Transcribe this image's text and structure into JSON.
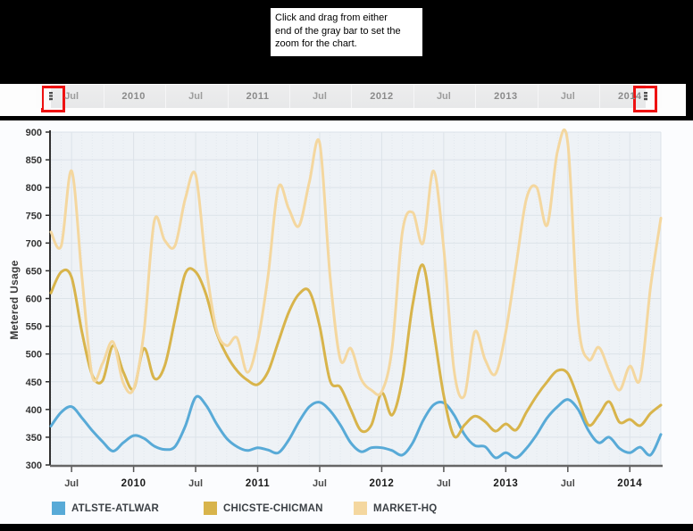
{
  "callout": {
    "lines": [
      "Click and drag from either",
      "end of the gray bar to set the",
      "zoom for the chart."
    ]
  },
  "navigator": {
    "tick_labels": [
      {
        "index": 2,
        "label": "Jul",
        "year": false
      },
      {
        "index": 8,
        "label": "2010",
        "year": true
      },
      {
        "index": 14,
        "label": "Jul",
        "year": false
      },
      {
        "index": 20,
        "label": "2011",
        "year": true
      },
      {
        "index": 26,
        "label": "Jul",
        "year": false
      },
      {
        "index": 32,
        "label": "2012",
        "year": true
      },
      {
        "index": 38,
        "label": "Jul",
        "year": false
      },
      {
        "index": 44,
        "label": "2013",
        "year": true
      },
      {
        "index": 50,
        "label": "Jul",
        "year": false
      },
      {
        "index": 56,
        "label": "2014",
        "year": true
      }
    ]
  },
  "chart_data": {
    "type": "line",
    "title": "",
    "xlabel": "",
    "ylabel": "Metered Usage",
    "ylim": [
      300,
      900
    ],
    "ytick_step": 50,
    "grid": true,
    "legend_position": "bottom",
    "x": [
      "2009-05",
      "2009-06",
      "2009-07",
      "2009-08",
      "2009-09",
      "2009-10",
      "2009-11",
      "2009-12",
      "2010-01",
      "2010-02",
      "2010-03",
      "2010-04",
      "2010-05",
      "2010-06",
      "2010-07",
      "2010-08",
      "2010-09",
      "2010-10",
      "2010-11",
      "2010-12",
      "2011-01",
      "2011-02",
      "2011-03",
      "2011-04",
      "2011-05",
      "2011-06",
      "2011-07",
      "2011-08",
      "2011-09",
      "2011-10",
      "2011-11",
      "2011-12",
      "2012-01",
      "2012-02",
      "2012-03",
      "2012-04",
      "2012-05",
      "2012-06",
      "2012-07",
      "2012-08",
      "2012-09",
      "2012-10",
      "2012-11",
      "2012-12",
      "2013-01",
      "2013-02",
      "2013-03",
      "2013-04",
      "2013-05",
      "2013-06",
      "2013-07",
      "2013-08",
      "2013-09",
      "2013-10",
      "2013-11",
      "2013-12",
      "2014-01",
      "2014-02",
      "2014-03",
      "2014-04"
    ],
    "x_ticks": [
      {
        "index": 2,
        "label": "Jul",
        "year": false
      },
      {
        "index": 8,
        "label": "2010",
        "year": true
      },
      {
        "index": 14,
        "label": "Jul",
        "year": false
      },
      {
        "index": 20,
        "label": "2011",
        "year": true
      },
      {
        "index": 26,
        "label": "Jul",
        "year": false
      },
      {
        "index": 32,
        "label": "2012",
        "year": true
      },
      {
        "index": 38,
        "label": "Jul",
        "year": false
      },
      {
        "index": 44,
        "label": "2013",
        "year": true
      },
      {
        "index": 50,
        "label": "Jul",
        "year": false
      },
      {
        "index": 56,
        "label": "2014",
        "year": true
      }
    ],
    "series": [
      {
        "name": "ATLSTE-ATLWAR",
        "color": "#58aad7",
        "values": [
          370,
          395,
          405,
          385,
          362,
          342,
          325,
          340,
          353,
          348,
          334,
          328,
          333,
          370,
          422,
          408,
          375,
          348,
          333,
          326,
          331,
          327,
          322,
          345,
          378,
          405,
          413,
          398,
          372,
          340,
          324,
          331,
          331,
          326,
          318,
          340,
          380,
          408,
          412,
          390,
          355,
          335,
          333,
          313,
          322,
          313,
          330,
          355,
          385,
          405,
          418,
          400,
          362,
          340,
          350,
          330,
          322,
          332,
          318,
          355
        ]
      },
      {
        "name": "CHICSTE-CHICMAN",
        "color": "#d8b44b",
        "values": [
          610,
          648,
          638,
          540,
          462,
          452,
          515,
          468,
          437,
          510,
          456,
          478,
          562,
          645,
          648,
          608,
          540,
          498,
          470,
          453,
          445,
          468,
          522,
          575,
          608,
          613,
          550,
          452,
          440,
          400,
          362,
          372,
          430,
          390,
          455,
          590,
          660,
          545,
          425,
          352,
          372,
          388,
          378,
          361,
          374,
          363,
          395,
          425,
          450,
          470,
          465,
          420,
          372,
          390,
          414,
          377,
          382,
          371,
          393,
          408
        ]
      },
      {
        "name": "MARKET-HQ",
        "color": "#f4d79f",
        "values": [
          720,
          695,
          830,
          640,
          460,
          483,
          522,
          448,
          437,
          540,
          740,
          705,
          695,
          780,
          823,
          660,
          545,
          515,
          529,
          467,
          523,
          640,
          800,
          762,
          731,
          810,
          880,
          640,
          490,
          510,
          455,
          435,
          432,
          510,
          720,
          755,
          700,
          830,
          690,
          470,
          425,
          540,
          490,
          464,
          540,
          660,
          780,
          800,
          732,
          865,
          880,
          560,
          490,
          512,
          470,
          435,
          478,
          455,
          620,
          745
        ]
      }
    ]
  },
  "colors": {
    "accent_red": "#ee1111",
    "plot_bg": "#eef2f6",
    "grid_major": "#dce3e9",
    "grid_minor": "#e2e8ee",
    "axis_y": "#303030",
    "axis_x": "#666666",
    "tick_text": "#333333",
    "jul_text": "#4a4a4a",
    "year_text": "#1a1a1a"
  }
}
